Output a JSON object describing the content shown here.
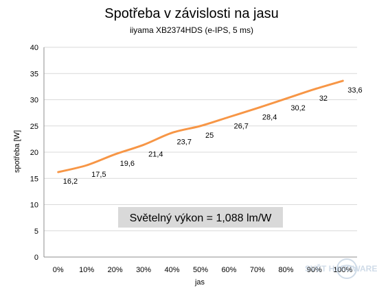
{
  "colors": {
    "series": "#f79646",
    "grid": "#d9d9d9",
    "annotation_bg": "#d9d9d9",
    "watermark": "#a9bfd6"
  },
  "watermark": {
    "text": "SVĚT HARDWARE",
    "icon": "globe-logo-icon"
  },
  "chart_data": {
    "type": "line",
    "title": "Spotřeba v závislosti na jasu",
    "subtitle": "iiyama XB2374HDS  (e-IPS, 5 ms)",
    "xlabel": "jas",
    "ylabel": "spotřeba [W]",
    "categories": [
      "0%",
      "10%",
      "20%",
      "30%",
      "40%",
      "50%",
      "60%",
      "70%",
      "80%",
      "90%",
      "100%"
    ],
    "series": [
      {
        "values": [
          16.2,
          17.5,
          19.6,
          21.4,
          23.7,
          25,
          26.7,
          28.4,
          30.2,
          32,
          33.6
        ]
      }
    ],
    "data_labels": [
      "16,2",
      "17,5",
      "19,6",
      "21,4",
      "23,7",
      "25",
      "26,7",
      "28,4",
      "30,2",
      "32",
      "33,6"
    ],
    "ylim": [
      0,
      40
    ],
    "yticks": [
      "0",
      "5",
      "10",
      "15",
      "20",
      "25",
      "30",
      "35",
      "40"
    ],
    "grid": true,
    "legend": "none",
    "annotation": "Světelný výkon = 1,088 lm/W"
  }
}
